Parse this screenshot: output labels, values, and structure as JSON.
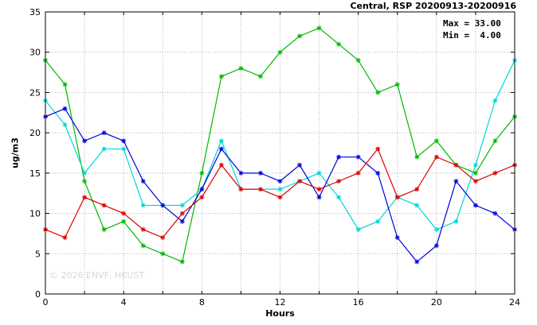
{
  "title": "Central, RSP 20200913-20200916",
  "stats": {
    "max_label": "Max = 33.00",
    "min_label": "Min =  4.00"
  },
  "watermark": "© 2026 ENVF, HKUST",
  "chart_data": {
    "type": "line",
    "title": "Central, RSP 20200913-20200916",
    "xlabel": "Hours",
    "ylabel": "ug/m3",
    "xlim": [
      0,
      24
    ],
    "ylim": [
      0,
      35
    ],
    "x_ticks": [
      0,
      4,
      8,
      12,
      16,
      20,
      24
    ],
    "x_minor_ticks": [
      0,
      2,
      4,
      6,
      8,
      10,
      12,
      14,
      16,
      18,
      20,
      22,
      24
    ],
    "y_ticks": [
      0,
      5,
      10,
      15,
      20,
      25,
      30,
      35
    ],
    "grid": true,
    "legend": "none",
    "max": 33.0,
    "min": 4.0,
    "x": [
      0,
      1,
      2,
      3,
      4,
      5,
      6,
      7,
      8,
      9,
      10,
      11,
      12,
      13,
      14,
      15,
      16,
      17,
      18,
      19,
      20,
      21,
      22,
      23,
      24
    ],
    "series": [
      {
        "name": "green",
        "color": "#00b800",
        "values": [
          29,
          26,
          14,
          8,
          9,
          6,
          5,
          4,
          15,
          27,
          28,
          27,
          30,
          32,
          33,
          31,
          29,
          25,
          26,
          17,
          19,
          16,
          15,
          19,
          22
        ]
      },
      {
        "name": "cyan",
        "color": "#00d6d6",
        "values": [
          24,
          21,
          15,
          18,
          18,
          11,
          11,
          11,
          13,
          19,
          13,
          13,
          13,
          14,
          15,
          12,
          8,
          9,
          12,
          11,
          8,
          9,
          16,
          24,
          29
        ]
      },
      {
        "name": "blue",
        "color": "#0000dd",
        "values": [
          22,
          23,
          19,
          20,
          19,
          14,
          11,
          9,
          13,
          18,
          15,
          15,
          14,
          16,
          12,
          17,
          17,
          15,
          7,
          4,
          6,
          14,
          11,
          10,
          8
        ]
      },
      {
        "name": "red",
        "color": "#dd0000",
        "values": [
          8,
          7,
          12,
          11,
          10,
          8,
          7,
          10,
          12,
          16,
          13,
          13,
          12,
          14,
          13,
          14,
          15,
          18,
          12,
          13,
          17,
          16,
          14,
          15,
          16
        ]
      }
    ]
  }
}
